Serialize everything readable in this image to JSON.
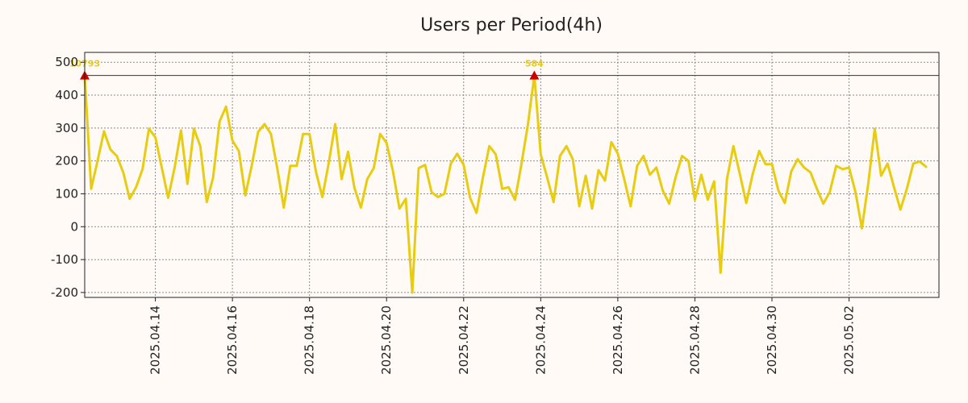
{
  "chart_data": {
    "type": "line",
    "title": "Users per Period(4h)",
    "xlabel": "",
    "ylabel": "",
    "ylim": [
      -215,
      530
    ],
    "y_ticks": [
      -200,
      -100,
      0,
      100,
      200,
      300,
      400,
      500
    ],
    "y_tick_labels": [
      "-200",
      "-100",
      "0",
      "100",
      "200",
      "300",
      "400",
      "500"
    ],
    "xlim": [
      "2025-04-12T04:00",
      "2025-05-04T08:00"
    ],
    "x_ticks": [
      "2025-04-14",
      "2025-04-16",
      "2025-04-18",
      "2025-04-20",
      "2025-04-22",
      "2025-04-24",
      "2025-04-26",
      "2025-04-28",
      "2025-04-30",
      "2025-05-02"
    ],
    "x_tick_labels": [
      "2025.04.14",
      "2025.04.16",
      "2025.04.18",
      "2025.04.20",
      "2025.04.22",
      "2025.04.24",
      "2025.04.26",
      "2025.04.28",
      "2025.04.30",
      "2025.05.02"
    ],
    "grid": true,
    "reference_line": 460,
    "series": [
      {
        "color": "#e8cc12",
        "points": [
          [
            "2025-04-12T04:00",
            460
          ],
          [
            "2025-04-12T08:00",
            115
          ],
          [
            "2025-04-12T12:00",
            200
          ],
          [
            "2025-04-12T16:00",
            290
          ],
          [
            "2025-04-12T20:00",
            235
          ],
          [
            "2025-04-13T00:00",
            215
          ],
          [
            "2025-04-13T04:00",
            165
          ],
          [
            "2025-04-13T08:00",
            85
          ],
          [
            "2025-04-13T12:00",
            120
          ],
          [
            "2025-04-13T16:00",
            175
          ],
          [
            "2025-04-13T20:00",
            298
          ],
          [
            "2025-04-14T00:00",
            272
          ],
          [
            "2025-04-14T04:00",
            180
          ],
          [
            "2025-04-14T08:00",
            88
          ],
          [
            "2025-04-14T12:00",
            180
          ],
          [
            "2025-04-14T16:00",
            293
          ],
          [
            "2025-04-14T20:00",
            130
          ],
          [
            "2025-04-15T00:00",
            298
          ],
          [
            "2025-04-15T04:00",
            245
          ],
          [
            "2025-04-15T08:00",
            75
          ],
          [
            "2025-04-15T12:00",
            150
          ],
          [
            "2025-04-15T16:00",
            320
          ],
          [
            "2025-04-15T20:00",
            365
          ],
          [
            "2025-04-16T00:00",
            262
          ],
          [
            "2025-04-16T04:00",
            230
          ],
          [
            "2025-04-16T08:00",
            95
          ],
          [
            "2025-04-16T12:00",
            185
          ],
          [
            "2025-04-16T16:00",
            288
          ],
          [
            "2025-04-16T20:00",
            312
          ],
          [
            "2025-04-17T00:00",
            282
          ],
          [
            "2025-04-17T04:00",
            175
          ],
          [
            "2025-04-17T08:00",
            58
          ],
          [
            "2025-04-17T12:00",
            185
          ],
          [
            "2025-04-17T16:00",
            185
          ],
          [
            "2025-04-17T20:00",
            282
          ],
          [
            "2025-04-18T00:00",
            282
          ],
          [
            "2025-04-18T04:00",
            168
          ],
          [
            "2025-04-18T08:00",
            90
          ],
          [
            "2025-04-18T12:00",
            195
          ],
          [
            "2025-04-18T16:00",
            312
          ],
          [
            "2025-04-18T20:00",
            145
          ],
          [
            "2025-04-19T00:00",
            228
          ],
          [
            "2025-04-19T04:00",
            118
          ],
          [
            "2025-04-19T08:00",
            58
          ],
          [
            "2025-04-19T12:00",
            145
          ],
          [
            "2025-04-19T16:00",
            178
          ],
          [
            "2025-04-19T20:00",
            282
          ],
          [
            "2025-04-20T00:00",
            255
          ],
          [
            "2025-04-20T04:00",
            168
          ],
          [
            "2025-04-20T08:00",
            55
          ],
          [
            "2025-04-20T12:00",
            85
          ],
          [
            "2025-04-20T16:00",
            -200
          ],
          [
            "2025-04-20T20:00",
            178
          ],
          [
            "2025-04-21T00:00",
            188
          ],
          [
            "2025-04-21T04:00",
            105
          ],
          [
            "2025-04-21T08:00",
            90
          ],
          [
            "2025-04-21T12:00",
            100
          ],
          [
            "2025-04-21T16:00",
            192
          ],
          [
            "2025-04-21T20:00",
            222
          ],
          [
            "2025-04-22T00:00",
            188
          ],
          [
            "2025-04-22T04:00",
            88
          ],
          [
            "2025-04-22T08:00",
            42
          ],
          [
            "2025-04-22T12:00",
            150
          ],
          [
            "2025-04-22T16:00",
            245
          ],
          [
            "2025-04-22T20:00",
            220
          ],
          [
            "2025-04-23T00:00",
            115
          ],
          [
            "2025-04-23T04:00",
            120
          ],
          [
            "2025-04-23T08:00",
            82
          ],
          [
            "2025-04-23T12:00",
            190
          ],
          [
            "2025-04-23T16:00",
            310
          ],
          [
            "2025-04-23T20:00",
            460
          ],
          [
            "2025-04-24T00:00",
            220
          ],
          [
            "2025-04-24T04:00",
            150
          ],
          [
            "2025-04-24T08:00",
            75
          ],
          [
            "2025-04-24T12:00",
            215
          ],
          [
            "2025-04-24T16:00",
            245
          ],
          [
            "2025-04-24T20:00",
            205
          ],
          [
            "2025-04-25T00:00",
            62
          ],
          [
            "2025-04-25T04:00",
            155
          ],
          [
            "2025-04-25T08:00",
            55
          ],
          [
            "2025-04-25T12:00",
            172
          ],
          [
            "2025-04-25T16:00",
            140
          ],
          [
            "2025-04-25T20:00",
            257
          ],
          [
            "2025-04-26T00:00",
            222
          ],
          [
            "2025-04-26T04:00",
            145
          ],
          [
            "2025-04-26T08:00",
            62
          ],
          [
            "2025-04-26T12:00",
            185
          ],
          [
            "2025-04-26T16:00",
            215
          ],
          [
            "2025-04-26T20:00",
            158
          ],
          [
            "2025-04-27T00:00",
            180
          ],
          [
            "2025-04-27T04:00",
            110
          ],
          [
            "2025-04-27T08:00",
            70
          ],
          [
            "2025-04-27T12:00",
            150
          ],
          [
            "2025-04-27T16:00",
            215
          ],
          [
            "2025-04-27T20:00",
            200
          ],
          [
            "2025-04-28T00:00",
            82
          ],
          [
            "2025-04-28T04:00",
            158
          ],
          [
            "2025-04-28T08:00",
            82
          ],
          [
            "2025-04-28T12:00",
            138
          ],
          [
            "2025-04-28T16:00",
            -140
          ],
          [
            "2025-04-28T20:00",
            145
          ],
          [
            "2025-04-29T00:00",
            245
          ],
          [
            "2025-04-29T04:00",
            160
          ],
          [
            "2025-04-29T08:00",
            72
          ],
          [
            "2025-04-29T12:00",
            160
          ],
          [
            "2025-04-29T16:00",
            230
          ],
          [
            "2025-04-29T20:00",
            190
          ],
          [
            "2025-04-30T00:00",
            190
          ],
          [
            "2025-04-30T04:00",
            110
          ],
          [
            "2025-04-30T08:00",
            72
          ],
          [
            "2025-04-30T12:00",
            168
          ],
          [
            "2025-04-30T16:00",
            205
          ],
          [
            "2025-04-30T20:00",
            180
          ],
          [
            "2025-05-01T00:00",
            165
          ],
          [
            "2025-05-01T04:00",
            115
          ],
          [
            "2025-05-01T08:00",
            70
          ],
          [
            "2025-05-01T12:00",
            105
          ],
          [
            "2025-05-01T16:00",
            185
          ],
          [
            "2025-05-01T20:00",
            175
          ],
          [
            "2025-05-02T00:00",
            180
          ],
          [
            "2025-05-02T04:00",
            105
          ],
          [
            "2025-05-02T08:00",
            -5
          ],
          [
            "2025-05-02T12:00",
            132
          ],
          [
            "2025-05-02T16:00",
            298
          ],
          [
            "2025-05-02T20:00",
            155
          ],
          [
            "2025-05-03T00:00",
            192
          ],
          [
            "2025-05-03T04:00",
            120
          ],
          [
            "2025-05-03T08:00",
            52
          ],
          [
            "2025-05-03T12:00",
            115
          ],
          [
            "2025-05-03T16:00",
            192
          ],
          [
            "2025-05-03T20:00",
            198
          ],
          [
            "2025-05-04T00:00",
            182
          ]
        ]
      }
    ],
    "annotations": [
      {
        "x": "2025-04-12T04:00",
        "y": 460,
        "label": "10793",
        "marker": "triangle",
        "marker_color": "#cc0000",
        "label_color": "#e8cc12"
      },
      {
        "x": "2025-04-23T20:00",
        "y": 460,
        "label": "584",
        "marker": "triangle",
        "marker_color": "#cc0000",
        "label_color": "#e8cc12"
      }
    ]
  }
}
